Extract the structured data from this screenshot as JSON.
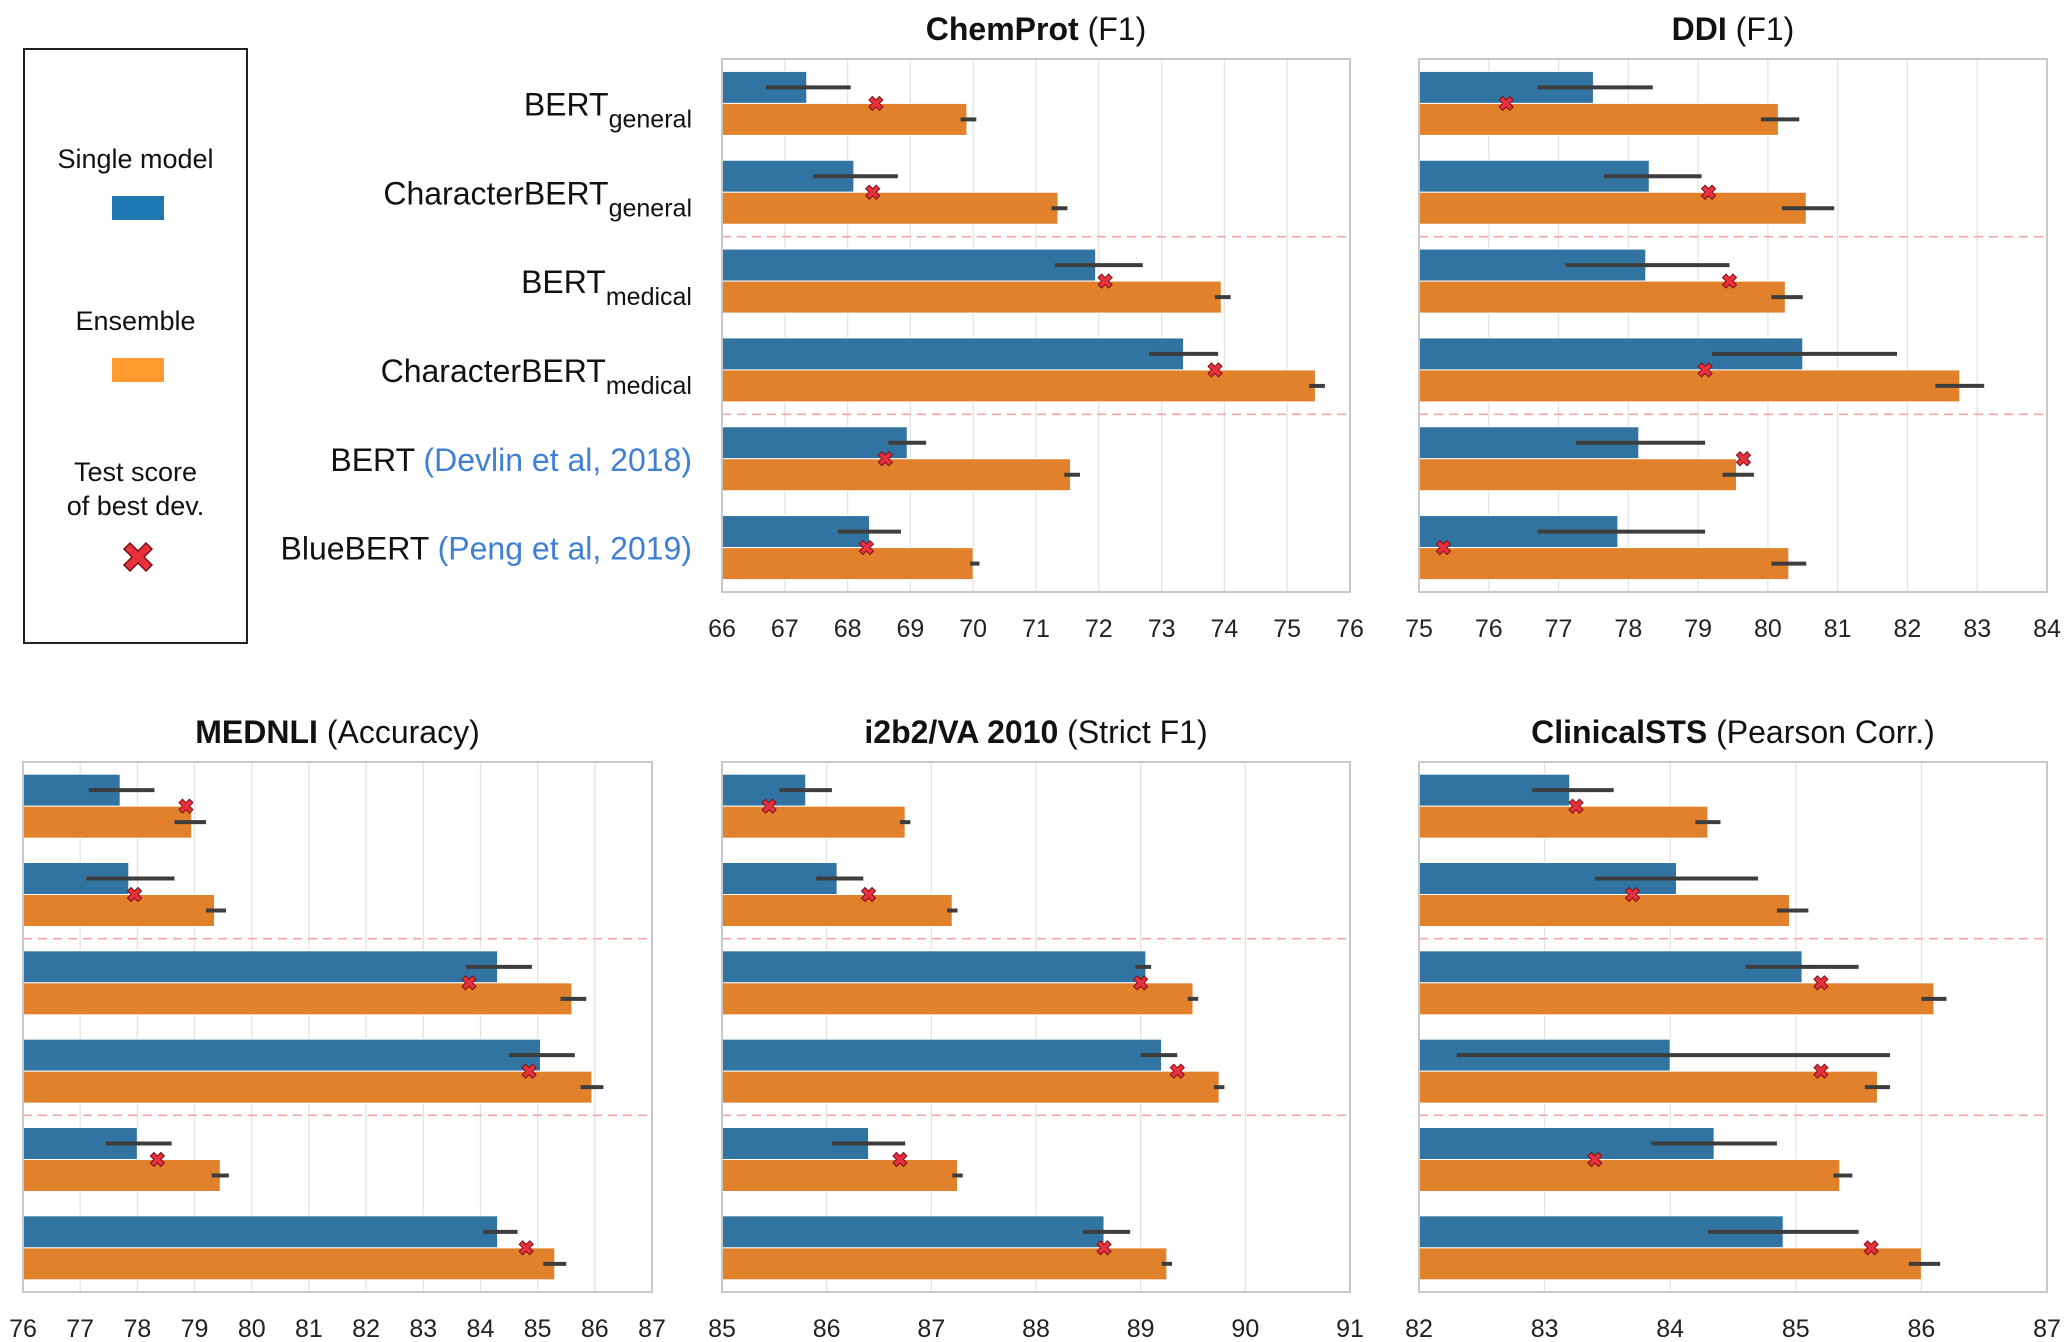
{
  "legend": {
    "single_label": "Single model",
    "ensemble_label": "Ensemble",
    "test_label_line1": "Test score",
    "test_label_line2": "of best dev."
  },
  "colors": {
    "single": "#3274a1",
    "ensemble": "#e1812c",
    "marker": "#e8313c",
    "legend_single": "#1f77b4",
    "legend_ensemble": "#ff9a2e",
    "separator": "#f4a6a6",
    "grid": "#e3e3e3",
    "citation": "#3f7fd6"
  },
  "models": [
    {
      "name": "BERT",
      "sub": "general",
      "cite": ""
    },
    {
      "name": "CharacterBERT",
      "sub": "general",
      "cite": ""
    },
    {
      "name": "BERT",
      "sub": "medical",
      "cite": ""
    },
    {
      "name": "CharacterBERT",
      "sub": "medical",
      "cite": ""
    },
    {
      "name": "BERT",
      "sub": "",
      "cite": "(Devlin et al, 2018)"
    },
    {
      "name": "BlueBERT",
      "sub": "",
      "cite": "(Peng et al, 2019)"
    }
  ],
  "chart_data": [
    {
      "type": "bar",
      "orientation": "horizontal",
      "title_bold": "ChemProt",
      "title_rest": " (F1)",
      "xlim": [
        66,
        76
      ],
      "ticks": [
        66,
        67,
        68,
        69,
        70,
        71,
        72,
        73,
        74,
        75,
        76
      ],
      "series": [
        {
          "name": "Single model",
          "values": [
            67.35,
            68.1,
            71.95,
            73.35,
            68.95,
            68.35
          ],
          "err_low": [
            66.7,
            67.45,
            71.3,
            72.8,
            68.65,
            67.85
          ],
          "err_high": [
            68.05,
            68.8,
            72.7,
            73.9,
            69.25,
            68.85
          ]
        },
        {
          "name": "Ensemble",
          "values": [
            69.9,
            71.35,
            73.95,
            75.45,
            71.55,
            70.0
          ],
          "err_low": [
            69.8,
            71.25,
            73.85,
            75.35,
            71.45,
            69.95
          ],
          "err_high": [
            70.05,
            71.5,
            74.1,
            75.6,
            71.7,
            70.1
          ]
        }
      ],
      "test_scores": [
        68.45,
        68.4,
        72.1,
        73.85,
        68.6,
        68.3
      ]
    },
    {
      "type": "bar",
      "orientation": "horizontal",
      "title_bold": "DDI",
      "title_rest": " (F1)",
      "xlim": [
        75,
        84
      ],
      "ticks": [
        75,
        76,
        77,
        78,
        79,
        80,
        81,
        82,
        83,
        84
      ],
      "series": [
        {
          "name": "Single model",
          "values": [
            77.5,
            78.3,
            78.25,
            80.5,
            78.15,
            77.85
          ],
          "err_low": [
            76.7,
            77.65,
            77.1,
            79.2,
            77.25,
            76.7
          ],
          "err_high": [
            78.35,
            79.05,
            79.45,
            81.85,
            79.1,
            79.1
          ]
        },
        {
          "name": "Ensemble",
          "values": [
            80.15,
            80.55,
            80.25,
            82.75,
            79.55,
            80.3
          ],
          "err_low": [
            79.9,
            80.2,
            80.05,
            82.4,
            79.35,
            80.05
          ],
          "err_high": [
            80.45,
            80.95,
            80.5,
            83.1,
            79.8,
            80.55
          ]
        }
      ],
      "test_scores": [
        76.25,
        79.15,
        79.45,
        79.1,
        79.65,
        75.35
      ]
    },
    {
      "type": "bar",
      "orientation": "horizontal",
      "title_bold": "MEDNLI",
      "title_rest": " (Accuracy)",
      "xlim": [
        76,
        87
      ],
      "ticks": [
        76,
        77,
        78,
        79,
        80,
        81,
        82,
        83,
        84,
        85,
        86,
        87
      ],
      "series": [
        {
          "name": "Single model",
          "values": [
            77.7,
            77.85,
            84.3,
            85.05,
            78.0,
            84.3
          ],
          "err_low": [
            77.15,
            77.1,
            83.75,
            84.5,
            77.45,
            84.05
          ],
          "err_high": [
            78.3,
            78.65,
            84.9,
            85.65,
            78.6,
            84.65
          ]
        },
        {
          "name": "Ensemble",
          "values": [
            78.95,
            79.35,
            85.6,
            85.95,
            79.45,
            85.3
          ],
          "err_low": [
            78.65,
            79.2,
            85.4,
            85.75,
            79.3,
            85.1
          ],
          "err_high": [
            79.2,
            79.55,
            85.85,
            86.15,
            79.6,
            85.5
          ]
        }
      ],
      "test_scores": [
        78.85,
        77.95,
        83.8,
        84.85,
        78.35,
        84.8
      ]
    },
    {
      "type": "bar",
      "orientation": "horizontal",
      "title_bold": "i2b2/VA 2010",
      "title_rest": " (Strict F1)",
      "xlim": [
        85,
        91
      ],
      "ticks": [
        85,
        86,
        87,
        88,
        89,
        90,
        91
      ],
      "series": [
        {
          "name": "Single model",
          "values": [
            85.8,
            86.1,
            89.05,
            89.2,
            86.4,
            88.65
          ],
          "err_low": [
            85.55,
            85.9,
            88.95,
            89.0,
            86.05,
            88.45
          ],
          "err_high": [
            86.05,
            86.35,
            89.1,
            89.35,
            86.75,
            88.9
          ]
        },
        {
          "name": "Ensemble",
          "values": [
            86.75,
            87.2,
            89.5,
            89.75,
            87.25,
            89.25
          ],
          "err_low": [
            86.7,
            87.15,
            89.45,
            89.7,
            87.2,
            89.2
          ],
          "err_high": [
            86.8,
            87.25,
            89.55,
            89.8,
            87.3,
            89.3
          ]
        }
      ],
      "test_scores": [
        85.45,
        86.4,
        89.0,
        89.35,
        86.7,
        88.65
      ]
    },
    {
      "type": "bar",
      "orientation": "horizontal",
      "title_bold": "ClinicalSTS",
      "title_rest": " (Pearson Corr.)",
      "xlim": [
        82,
        87
      ],
      "ticks": [
        82,
        83,
        84,
        85,
        86,
        87
      ],
      "series": [
        {
          "name": "Single model",
          "values": [
            83.2,
            84.05,
            85.05,
            84.0,
            84.35,
            84.9
          ],
          "err_low": [
            82.9,
            83.4,
            84.6,
            82.3,
            83.85,
            84.3
          ],
          "err_high": [
            83.55,
            84.7,
            85.5,
            85.75,
            84.85,
            85.5
          ]
        },
        {
          "name": "Ensemble",
          "values": [
            84.3,
            84.95,
            86.1,
            85.65,
            85.35,
            86.0
          ],
          "err_low": [
            84.2,
            84.85,
            86.0,
            85.55,
            85.3,
            85.9
          ],
          "err_high": [
            84.4,
            85.1,
            86.2,
            85.75,
            85.45,
            86.15
          ]
        }
      ],
      "test_scores": [
        83.25,
        83.7,
        85.2,
        85.2,
        83.4,
        85.6
      ]
    }
  ]
}
